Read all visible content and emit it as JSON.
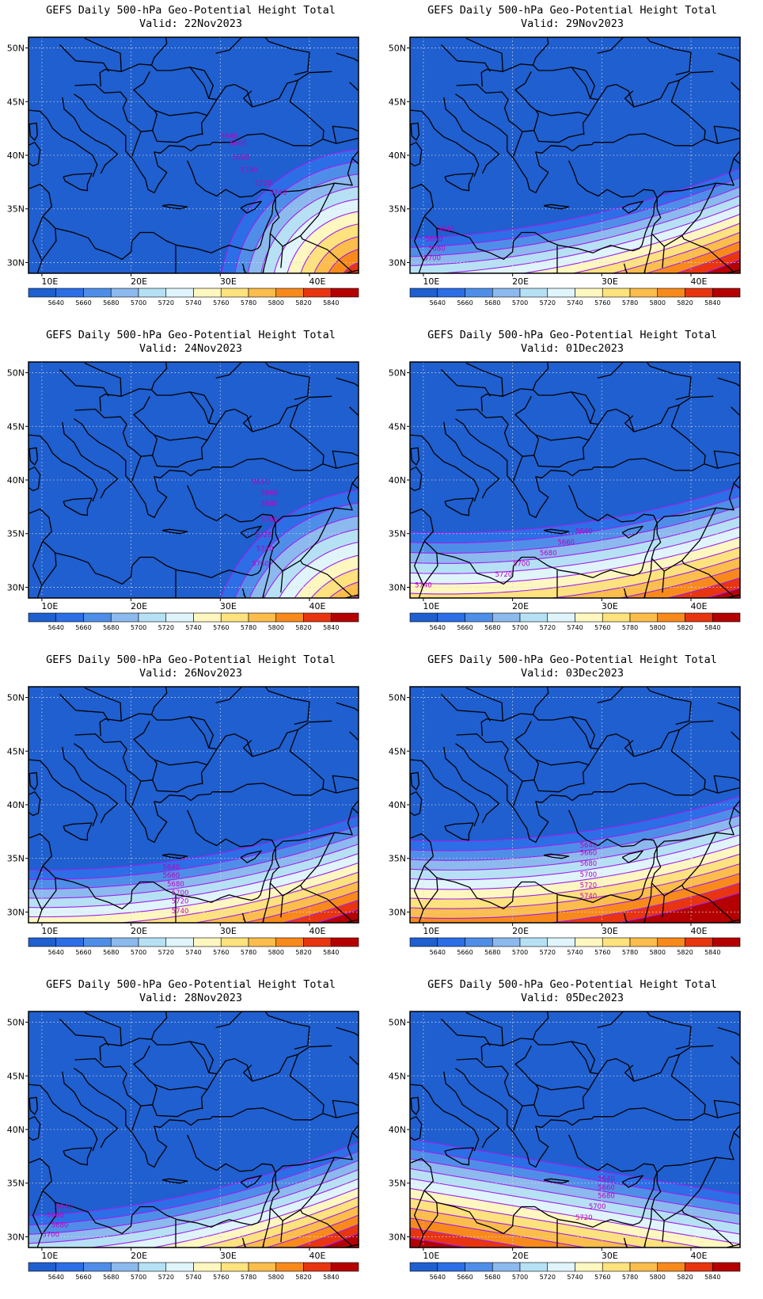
{
  "common": {
    "title": "GEFS Daily 500-hPa Geo-Potential Height Total",
    "valid_prefix": "Valid:",
    "lat_labels": [
      "50N",
      "45N",
      "40N",
      "35N",
      "30N"
    ],
    "lon_labels": [
      "10E",
      "20E",
      "30E",
      "40E"
    ],
    "colorbar_levels": [
      "5640",
      "5660",
      "5680",
      "5700",
      "5720",
      "5740",
      "5760",
      "5780",
      "5800",
      "5820",
      "5840"
    ],
    "colorbar_colors": [
      "#1f5fcf",
      "#2c6ee6",
      "#4f8ee8",
      "#8cb9ee",
      "#b6e1f5",
      "#dff5fb",
      "#fff7c0",
      "#fde27d",
      "#fbbd4b",
      "#f88a1c",
      "#e83510",
      "#b40000"
    ],
    "contour_color": "#a020f0",
    "background_color": "#1f5fcf",
    "coastline_color": "#000000"
  },
  "panels": [
    {
      "valid": "22Nov2023",
      "contour_labels": [
        "5640",
        "5660",
        "5680",
        "5700",
        "5720",
        "5740"
      ]
    },
    {
      "valid": "29Nov2023",
      "contour_labels": [
        "5640",
        "5660",
        "5680",
        "5700"
      ]
    },
    {
      "valid": "24Nov2023",
      "contour_labels": [
        "5640",
        "5660",
        "5680",
        "5700",
        "5720",
        "5740",
        "5760"
      ]
    },
    {
      "valid": "01Dec2023",
      "contour_labels": [
        "5640",
        "5660",
        "5680",
        "5700",
        "5720",
        "5740"
      ]
    },
    {
      "valid": "26Nov2023",
      "contour_labels": [
        "5640",
        "5660",
        "5680",
        "5700",
        "5720",
        "5740"
      ]
    },
    {
      "valid": "03Dec2023",
      "contour_labels": [
        "5640",
        "5660",
        "5680",
        "5700",
        "5720",
        "5740"
      ]
    },
    {
      "valid": "28Nov2023",
      "contour_labels": [
        "5640",
        "5660",
        "5680",
        "5700"
      ]
    },
    {
      "valid": "05Dec2023",
      "contour_labels": [
        "5640",
        "5660",
        "5680",
        "5700",
        "5720"
      ]
    }
  ]
}
